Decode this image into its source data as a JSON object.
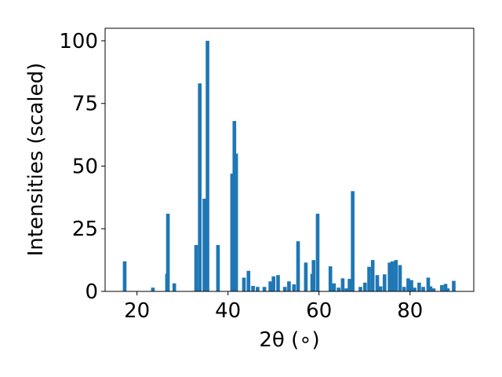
{
  "chart_data": {
    "type": "bar",
    "title": "",
    "xlabel": "2θ (∘)",
    "ylabel": "Intensities (scaled)",
    "xlim": [
      13,
      94
    ],
    "ylim": [
      0,
      105
    ],
    "xticks": [
      20,
      40,
      60,
      80
    ],
    "yticks": [
      0,
      25,
      50,
      75,
      100
    ],
    "bar_color": "#1f77b4",
    "grid": false,
    "x": [
      17.3,
      23.5,
      26.6,
      26.8,
      28.2,
      33.0,
      33.8,
      34.8,
      35.5,
      37.8,
      40.9,
      41.4,
      41.8,
      43.5,
      44.5,
      45.5,
      46.5,
      48.0,
      49.3,
      50.0,
      51.0,
      52.5,
      53.4,
      54.5,
      55.4,
      57.1,
      58.5,
      58.8,
      59.7,
      62.5,
      63.3,
      64.3,
      65.2,
      66.0,
      66.7,
      67.4,
      69.1,
      70.1,
      71.0,
      71.8,
      72.8,
      73.5,
      74.4,
      75.5,
      76.1,
      76.9,
      77.8,
      78.7,
      79.6,
      80.3,
      81.0,
      82.0,
      82.9,
      84.0,
      84.5,
      85.2,
      87.0,
      87.8,
      88.3,
      89.6
    ],
    "values": [
      12,
      1.5,
      7,
      31,
      3.2,
      18.5,
      83,
      37,
      100,
      18.5,
      47,
      68,
      55,
      5.5,
      8.2,
      2.2,
      1.8,
      1.8,
      4.0,
      6.0,
      6.5,
      1.8,
      4.0,
      2.8,
      20,
      11.5,
      7.0,
      12.5,
      31,
      10,
      3.2,
      1.5,
      5.2,
      1.2,
      5.0,
      40,
      1.8,
      3.5,
      9.8,
      12.5,
      6.5,
      2.0,
      6.8,
      11.5,
      12,
      12.5,
      10.5,
      1.8,
      5.2,
      4.5,
      1.5,
      3.5,
      1.8,
      5.5,
      2.0,
      1.2,
      2.5,
      3.0,
      1.2,
      4.2
    ]
  }
}
